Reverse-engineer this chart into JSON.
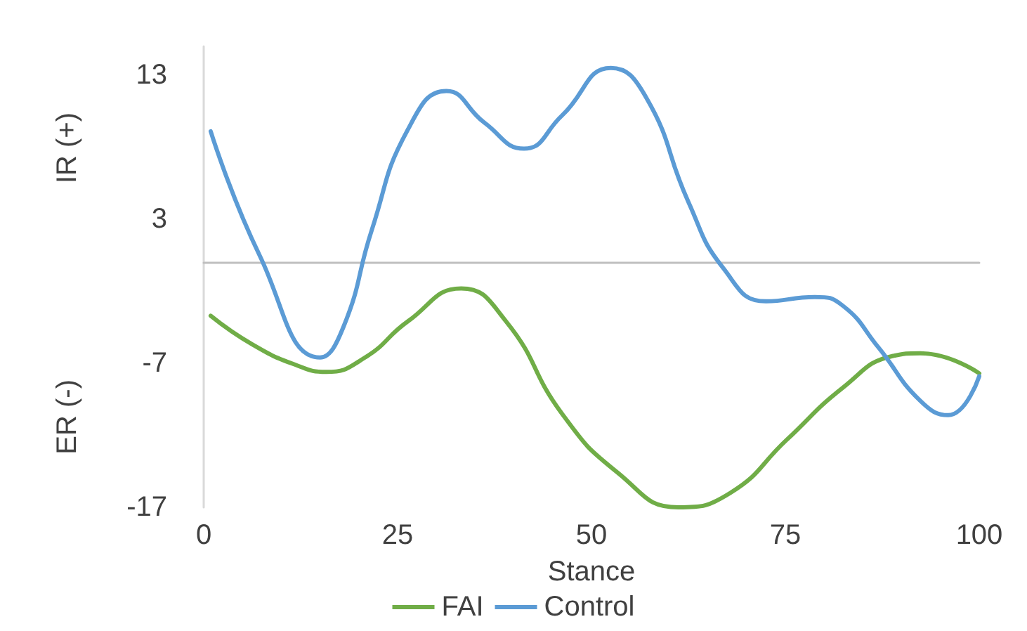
{
  "chart_data": {
    "type": "line",
    "xlabel": "Stance",
    "ylabel": "IR (+)",
    "annotations": [
      "ER (-)"
    ],
    "xlim": [
      0,
      100
    ],
    "xticks": [
      0,
      25,
      50,
      75,
      100
    ],
    "ylim": [
      -17,
      15
    ],
    "yticks": [
      -17,
      -7,
      3,
      13
    ],
    "grid": false,
    "legend": "bottom",
    "marker": "none",
    "line_style": "solid",
    "series": [
      {
        "name": "FAI",
        "color": "#70ad47",
        "x": [
          0.9,
          6.3,
          11.8,
          15.8,
          20.8,
          26.3,
          33.2,
          39,
          46.2,
          53.4,
          61.2,
          67.9,
          75.2,
          82.4,
          88.8,
          92.4,
          100
        ],
        "values": [
          -3.7,
          -5.7,
          -7.1,
          -7.6,
          -6.6,
          -4.1,
          -1.8,
          -4.1,
          -10.5,
          -14.6,
          -17,
          -16,
          -12.3,
          -8.7,
          -6.5,
          -6.3,
          -7.7
        ]
      },
      {
        "name": "Control",
        "color": "#5b9bd5",
        "x": [
          0.9,
          7.2,
          15,
          18,
          21.7,
          26.3,
          31.3,
          36.2,
          41.3,
          46.2,
          52.5,
          57,
          62.5,
          67,
          72.5,
          78.8,
          82.4,
          87,
          92.4,
          96,
          100
        ],
        "values": [
          9.1,
          0.5,
          -6.6,
          -4.5,
          2.3,
          9.2,
          11.9,
          9.7,
          7.9,
          10.2,
          13.5,
          11.5,
          4.2,
          -0.4,
          -2.7,
          -2.4,
          -3,
          -5.9,
          -9.6,
          -10.6,
          -7.9
        ]
      }
    ]
  }
}
